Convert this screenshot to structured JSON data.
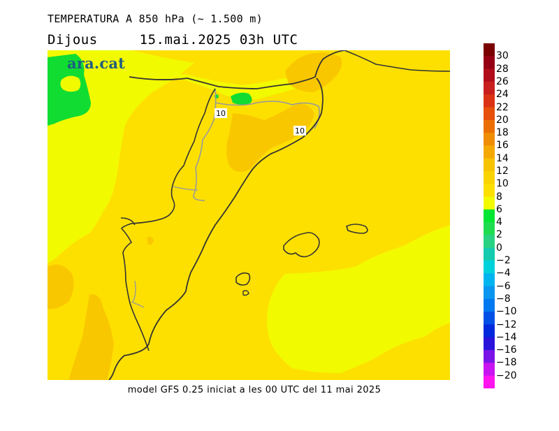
{
  "title": "TEMPERATURA A 850 hPa (~ 1.500 m)",
  "day": "Dijous",
  "date": "15.mai.2025 03h UTC",
  "footer": "model GFS 0.25 iniciat a les 00 UTC del 11 mai 2025",
  "watermark": "ara.cat",
  "isotherm_labels": [
    "10",
    "10"
  ],
  "legend": {
    "labels": [
      "30",
      "28",
      "26",
      "24",
      "22",
      "20",
      "18",
      "16",
      "14",
      "12",
      "10",
      "8",
      "6",
      "4",
      "2",
      "0",
      "−2",
      "−4",
      "−6",
      "−8",
      "−10",
      "−12",
      "−14",
      "−16",
      "−18",
      "−20"
    ],
    "colors": [
      "#7a0000",
      "#960014",
      "#b00c1c",
      "#c81e1e",
      "#dc3214",
      "#e6500a",
      "#ea6e00",
      "#ef8c00",
      "#f5a800",
      "#f7c200",
      "#f9d400",
      "#fde000",
      "#f2fa00",
      "#00e632",
      "#1edc50",
      "#28d282",
      "#14cbb0",
      "#00d2dc",
      "#00b4f0",
      "#0a96f0",
      "#0078f0",
      "#0050e6",
      "#0028dc",
      "#2a14dc",
      "#7a14e6",
      "#c814f0",
      "#ff14f0"
    ]
  },
  "colors": {
    "yellow_8_10": "#fde000",
    "orange_10_12": "#f9c700",
    "lightyellow_6_8": "#f2fa00",
    "green_4_6": "#10dc32",
    "coast": "#333333",
    "border": "#9a9a9a"
  }
}
